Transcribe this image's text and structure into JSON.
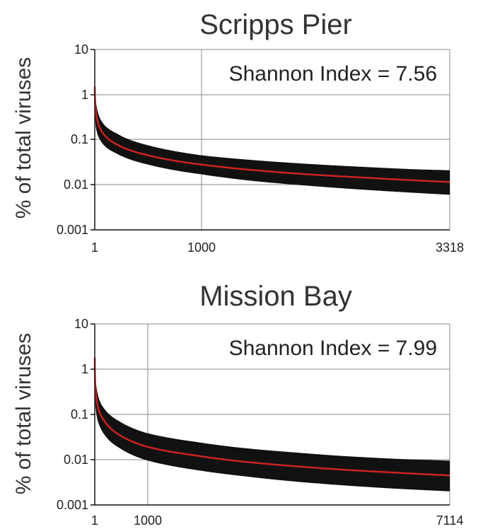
{
  "chart_data": [
    {
      "type": "area",
      "title": "Scripps Pier",
      "ylabel": "% of total viruses",
      "xlabel": "",
      "yscale": "log",
      "ylim": [
        0.001,
        10
      ],
      "xlim": [
        1,
        3318
      ],
      "yticks": [
        "10",
        "1",
        "0.1",
        "0.01",
        "0.001"
      ],
      "xticks": [
        "1",
        "1000",
        "3318"
      ],
      "annotation": "Shannon Index = 7.56",
      "grid": true,
      "series": [
        {
          "line_color": "#cc2222",
          "band_color": "#111111",
          "x": [
            1,
            10,
            50,
            100,
            200,
            500,
            1000,
            1500,
            2000,
            2500,
            3000,
            3318
          ],
          "y": [
            1.5,
            0.45,
            0.18,
            0.12,
            0.08,
            0.045,
            0.028,
            0.021,
            0.017,
            0.0145,
            0.0125,
            0.0115
          ],
          "lower": [
            0.9,
            0.2,
            0.1,
            0.07,
            0.05,
            0.028,
            0.017,
            0.012,
            0.0095,
            0.0078,
            0.0066,
            0.006
          ],
          "upper": [
            2.2,
            0.8,
            0.3,
            0.2,
            0.14,
            0.075,
            0.045,
            0.035,
            0.029,
            0.025,
            0.022,
            0.021
          ]
        }
      ]
    },
    {
      "type": "area",
      "title": "Mission Bay",
      "ylabel": "% of total viruses",
      "xlabel": "",
      "yscale": "log",
      "ylim": [
        0.001,
        10
      ],
      "xlim": [
        1,
        7114
      ],
      "yticks": [
        "10",
        "1",
        "0.1",
        "0.01",
        "0.001"
      ],
      "xticks": [
        "1",
        "1000",
        "7114"
      ],
      "annotation": "Shannon Index = 7.99",
      "grid": true,
      "series": [
        {
          "line_color": "#cc2222",
          "band_color": "#111111",
          "x": [
            1,
            10,
            50,
            100,
            200,
            500,
            1000,
            2000,
            3000,
            4000,
            5000,
            6000,
            7114
          ],
          "y": [
            1.8,
            0.5,
            0.17,
            0.11,
            0.07,
            0.035,
            0.02,
            0.0125,
            0.009,
            0.0072,
            0.006,
            0.0052,
            0.0045
          ],
          "lower": [
            0.9,
            0.2,
            0.08,
            0.055,
            0.035,
            0.018,
            0.01,
            0.006,
            0.0043,
            0.0033,
            0.0027,
            0.0023,
            0.002
          ],
          "upper": [
            3.0,
            0.9,
            0.32,
            0.2,
            0.13,
            0.07,
            0.04,
            0.025,
            0.018,
            0.0145,
            0.012,
            0.0105,
            0.0095
          ]
        }
      ]
    }
  ]
}
